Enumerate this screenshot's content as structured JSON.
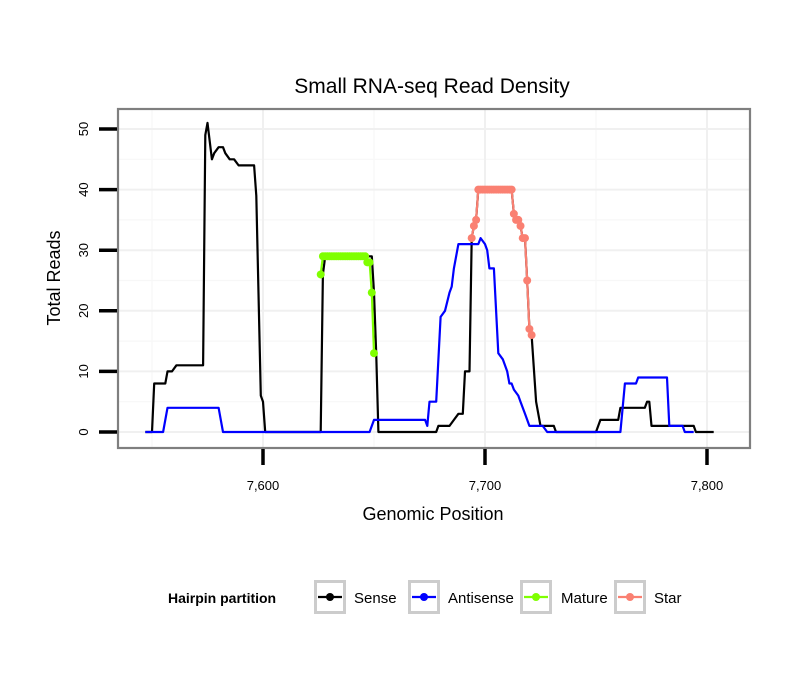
{
  "chart_data": {
    "type": "line",
    "title": "Small RNA-seq Read Density",
    "xlabel": "Genomic Position",
    "ylabel": "Total Reads",
    "xlim": [
      7540,
      7825
    ],
    "ylim": [
      -2.6,
      53.3
    ],
    "x_ticks": [
      7600,
      7700,
      7800
    ],
    "x_tick_labels": [
      "7,600",
      "7,700",
      "7,800"
    ],
    "x_minor_ticks": [
      7550,
      7650,
      7750
    ],
    "y_ticks": [
      0,
      10,
      20,
      30,
      40,
      50
    ],
    "y_tick_labels": [
      "0",
      "10",
      "20",
      "30",
      "40",
      "50"
    ],
    "grid": true,
    "legend": {
      "title": "Hairpin partition",
      "position": "bottom",
      "entries": [
        {
          "name": "Sense",
          "color": "#000000"
        },
        {
          "name": "Antisense",
          "color": "#0000ff"
        },
        {
          "name": "Mature",
          "color": "#7fff00"
        },
        {
          "name": "Star",
          "color": "#fa8072"
        }
      ]
    },
    "series": [
      {
        "name": "Sense",
        "color": "#000000",
        "style": "line",
        "points": [
          [
            7547,
            0
          ],
          [
            7550,
            0
          ],
          [
            7551,
            8
          ],
          [
            7556,
            8
          ],
          [
            7557,
            10
          ],
          [
            7559,
            10
          ],
          [
            7561,
            11
          ],
          [
            7573,
            11
          ],
          [
            7574,
            49
          ],
          [
            7575,
            51
          ],
          [
            7576,
            48
          ],
          [
            7577,
            45
          ],
          [
            7578,
            46
          ],
          [
            7580,
            47
          ],
          [
            7582,
            47
          ],
          [
            7583,
            46
          ],
          [
            7585,
            45
          ],
          [
            7587,
            45
          ],
          [
            7589,
            44
          ],
          [
            7596,
            44
          ],
          [
            7597,
            39
          ],
          [
            7599,
            6
          ],
          [
            7600,
            5
          ],
          [
            7601,
            0
          ],
          [
            7626,
            0
          ],
          [
            7627,
            26
          ],
          [
            7628,
            29
          ],
          [
            7649,
            29
          ],
          [
            7650,
            23
          ],
          [
            7651,
            13
          ],
          [
            7652,
            0
          ],
          [
            7678,
            0
          ],
          [
            7679,
            1
          ],
          [
            7684,
            1
          ],
          [
            7686,
            2
          ],
          [
            7688,
            3
          ],
          [
            7690,
            3
          ],
          [
            7691,
            10
          ],
          [
            7693,
            10
          ],
          [
            7694,
            32
          ],
          [
            7695,
            34
          ],
          [
            7696,
            35
          ],
          [
            7697,
            40
          ],
          [
            7712,
            40
          ],
          [
            7713,
            36
          ],
          [
            7714,
            35
          ],
          [
            7716,
            34
          ],
          [
            7717,
            32
          ],
          [
            7718,
            32
          ],
          [
            7719,
            25
          ],
          [
            7720,
            17
          ],
          [
            7721,
            16
          ],
          [
            7723,
            5
          ],
          [
            7725,
            1
          ],
          [
            7731,
            1
          ],
          [
            7732,
            0
          ],
          [
            7750,
            0
          ],
          [
            7752,
            2
          ],
          [
            7760,
            2
          ],
          [
            7761,
            4
          ],
          [
            7772,
            4
          ],
          [
            7773,
            5
          ],
          [
            7774,
            5
          ],
          [
            7775,
            1
          ],
          [
            7794,
            1
          ],
          [
            7795,
            0
          ],
          [
            7803,
            0
          ]
        ]
      },
      {
        "name": "Antisense",
        "color": "#0000ff",
        "style": "line",
        "points": [
          [
            7547,
            0
          ],
          [
            7555,
            0
          ],
          [
            7557,
            4
          ],
          [
            7580,
            4
          ],
          [
            7582,
            0
          ],
          [
            7600,
            0
          ],
          [
            7648,
            0
          ],
          [
            7650,
            2
          ],
          [
            7673,
            2
          ],
          [
            7674,
            1
          ],
          [
            7675,
            5
          ],
          [
            7678,
            5
          ],
          [
            7680,
            19
          ],
          [
            7682,
            20
          ],
          [
            7684,
            23
          ],
          [
            7685,
            24
          ],
          [
            7686,
            27
          ],
          [
            7688,
            31
          ],
          [
            7697,
            31
          ],
          [
            7698,
            32
          ],
          [
            7700,
            31
          ],
          [
            7701,
            30
          ],
          [
            7702,
            27
          ],
          [
            7704,
            27
          ],
          [
            7706,
            13
          ],
          [
            7708,
            12
          ],
          [
            7710,
            10
          ],
          [
            7711,
            8
          ],
          [
            7712,
            8
          ],
          [
            7713,
            7
          ],
          [
            7715,
            6
          ],
          [
            7716,
            5
          ],
          [
            7718,
            3
          ],
          [
            7720,
            1
          ],
          [
            7726,
            1
          ],
          [
            7728,
            0
          ],
          [
            7750,
            0
          ],
          [
            7761,
            0
          ],
          [
            7763,
            8
          ],
          [
            7768,
            8
          ],
          [
            7769,
            9
          ],
          [
            7782,
            9
          ],
          [
            7783,
            1
          ],
          [
            7789,
            1
          ],
          [
            7790,
            0
          ],
          [
            7794,
            0
          ]
        ]
      },
      {
        "name": "Mature",
        "color": "#7fff00",
        "style": "line+points",
        "points": [
          [
            7626,
            26
          ],
          [
            7627,
            29
          ],
          [
            7628,
            29
          ],
          [
            7629,
            29
          ],
          [
            7630,
            29
          ],
          [
            7631,
            29
          ],
          [
            7632,
            29
          ],
          [
            7633,
            29
          ],
          [
            7634,
            29
          ],
          [
            7635,
            29
          ],
          [
            7636,
            29
          ],
          [
            7637,
            29
          ],
          [
            7638,
            29
          ],
          [
            7639,
            29
          ],
          [
            7640,
            29
          ],
          [
            7641,
            29
          ],
          [
            7642,
            29
          ],
          [
            7643,
            29
          ],
          [
            7644,
            29
          ],
          [
            7645,
            29
          ],
          [
            7646,
            29
          ],
          [
            7647,
            28
          ],
          [
            7648,
            28
          ],
          [
            7649,
            23
          ],
          [
            7650,
            13
          ]
        ]
      },
      {
        "name": "Star",
        "color": "#fa8072",
        "style": "line+points",
        "points": [
          [
            7694,
            32
          ],
          [
            7695,
            34
          ],
          [
            7696,
            35
          ],
          [
            7697,
            40
          ],
          [
            7698,
            40
          ],
          [
            7699,
            40
          ],
          [
            7700,
            40
          ],
          [
            7701,
            40
          ],
          [
            7702,
            40
          ],
          [
            7703,
            40
          ],
          [
            7704,
            40
          ],
          [
            7705,
            40
          ],
          [
            7706,
            40
          ],
          [
            7707,
            40
          ],
          [
            7708,
            40
          ],
          [
            7709,
            40
          ],
          [
            7710,
            40
          ],
          [
            7711,
            40
          ],
          [
            7712,
            40
          ],
          [
            7713,
            36
          ],
          [
            7714,
            35
          ],
          [
            7715,
            35
          ],
          [
            7716,
            34
          ],
          [
            7717,
            32
          ],
          [
            7718,
            32
          ],
          [
            7719,
            25
          ],
          [
            7720,
            17
          ],
          [
            7721,
            16
          ]
        ]
      }
    ]
  }
}
